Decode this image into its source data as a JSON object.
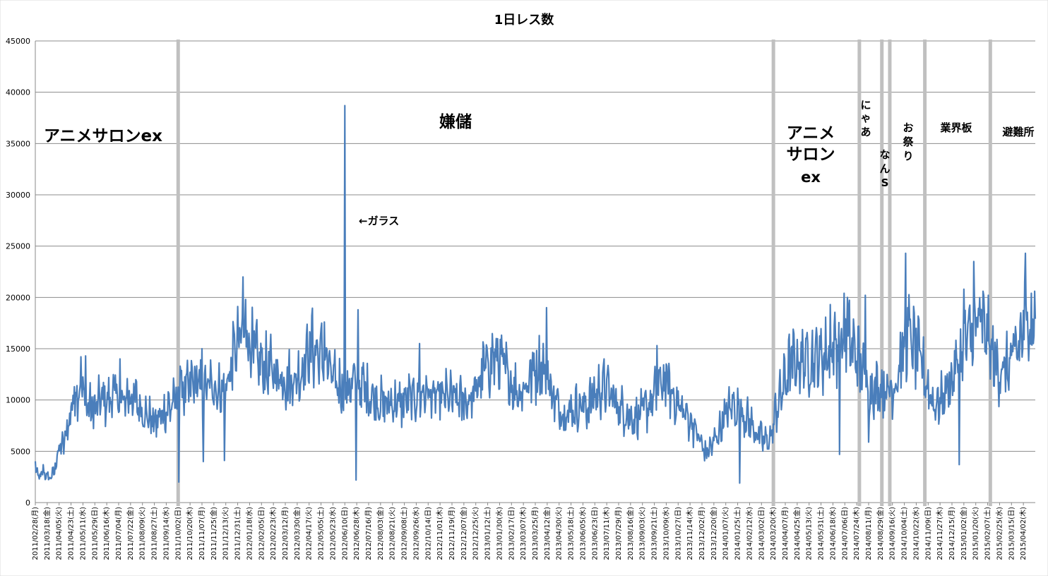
{
  "chart_data": {
    "type": "line",
    "title": "1日レス数",
    "xlabel": "",
    "ylabel": "",
    "ylim": [
      0,
      45000
    ],
    "yticks": [
      0,
      5000,
      10000,
      15000,
      20000,
      25000,
      30000,
      35000,
      40000,
      45000
    ],
    "grid": true,
    "legend": "none",
    "x_start": "2011-02-28",
    "x_end": "2015-04-20",
    "x_tick_labels": [
      "2011/02/28(月)",
      "2011/03/18(金)",
      "2011/04/05(火)",
      "2011/04/23(土)",
      "2011/05/11(水)",
      "2011/05/29(日)",
      "2011/06/16(木)",
      "2011/07/04(月)",
      "2011/07/22(金)",
      "2011/08/09(火)",
      "2011/08/27(土)",
      "2011/09/14(水)",
      "2011/10/02(日)",
      "2011/10/20(木)",
      "2011/11/07(月)",
      "2011/11/25(金)",
      "2011/12/13(火)",
      "2011/12/31(土)",
      "2012/01/18(水)",
      "2012/02/05(日)",
      "2012/02/23(木)",
      "2012/03/12(月)",
      "2012/03/30(金)",
      "2012/04/17(火)",
      "2012/05/05(土)",
      "2012/05/23(水)",
      "2012/06/10(日)",
      "2012/06/28(木)",
      "2012/07/16(月)",
      "2012/08/03(金)",
      "2012/08/21(火)",
      "2012/09/08(土)",
      "2012/09/26(水)",
      "2012/10/14(日)",
      "2012/11/01(木)",
      "2012/11/19(月)",
      "2012/12/07(金)",
      "2012/12/25(火)",
      "2013/01/12(土)",
      "2013/01/30(水)",
      "2013/02/17(日)",
      "2013/03/07(木)",
      "2013/03/25(月)",
      "2013/04/12(金)",
      "2013/04/30(火)",
      "2013/05/18(土)",
      "2013/06/05(水)",
      "2013/06/23(日)",
      "2013/07/11(木)",
      "2013/07/29(月)",
      "2013/08/16(金)",
      "2013/09/03(火)",
      "2013/09/21(土)",
      "2013/10/09(水)",
      "2013/10/27(日)",
      "2013/11/14(木)",
      "2013/12/02(月)",
      "2013/12/20(金)",
      "2014/01/07(火)",
      "2014/01/25(土)",
      "2014/02/12(水)",
      "2014/03/02(日)",
      "2014/03/20(木)",
      "2014/04/07(月)",
      "2014/04/25(金)",
      "2014/05/13(火)",
      "2014/05/31(土)",
      "2014/06/18(水)",
      "2014/07/06(日)",
      "2014/07/24(木)",
      "2014/08/11(月)",
      "2014/08/29(金)",
      "2014/09/16(火)",
      "2014/10/04(土)",
      "2014/10/22(水)",
      "2014/11/09(日)",
      "2014/11/27(木)",
      "2014/12/15(月)",
      "2015/01/02(金)",
      "2015/01/20(火)",
      "2015/02/07(土)",
      "2015/02/25(水)",
      "2015/03/15(日)",
      "2015/04/02(木)"
    ],
    "series": [
      {
        "color": "#4a7ebb",
        "anchors": [
          [
            "2011-02-28",
            3800
          ],
          [
            "2011-03-05",
            2200
          ],
          [
            "2011-03-12",
            3000
          ],
          [
            "2011-03-20",
            2300
          ],
          [
            "2011-03-28",
            2800
          ],
          [
            "2011-04-04",
            5000
          ],
          [
            "2011-04-12",
            5600
          ],
          [
            "2011-04-20",
            7800
          ],
          [
            "2011-04-28",
            10200
          ],
          [
            "2011-05-08",
            11500
          ],
          [
            "2011-05-18",
            9200
          ],
          [
            "2011-05-28",
            8800
          ],
          [
            "2011-06-08",
            9900
          ],
          [
            "2011-06-18",
            9600
          ],
          [
            "2011-06-28",
            10600
          ],
          [
            "2011-07-08",
            9100
          ],
          [
            "2011-07-18",
            10300
          ],
          [
            "2011-07-28",
            9800
          ],
          [
            "2011-08-08",
            8900
          ],
          [
            "2011-08-18",
            8200
          ],
          [
            "2011-08-28",
            7600
          ],
          [
            "2011-09-08",
            8400
          ],
          [
            "2011-09-18",
            9100
          ],
          [
            "2011-09-28",
            9600
          ],
          [
            "2011-10-05",
            11000
          ],
          [
            "2011-10-15",
            10500
          ],
          [
            "2011-10-25",
            11600
          ],
          [
            "2011-11-04",
            11000
          ],
          [
            "2011-11-14",
            10800
          ],
          [
            "2011-11-24",
            11400
          ],
          [
            "2011-12-04",
            10600
          ],
          [
            "2011-12-14",
            11200
          ],
          [
            "2011-12-24",
            13500
          ],
          [
            "2012-01-03",
            15500
          ],
          [
            "2012-01-13",
            16500
          ],
          [
            "2012-01-23",
            14400
          ],
          [
            "2012-02-02",
            13200
          ],
          [
            "2012-02-12",
            12800
          ],
          [
            "2012-02-22",
            12500
          ],
          [
            "2012-03-04",
            12100
          ],
          [
            "2012-03-14",
            11700
          ],
          [
            "2012-03-24",
            11600
          ],
          [
            "2012-04-03",
            12200
          ],
          [
            "2012-04-13",
            14000
          ],
          [
            "2012-04-23",
            14700
          ],
          [
            "2012-05-03",
            14000
          ],
          [
            "2012-05-13",
            13600
          ],
          [
            "2012-05-23",
            11600
          ],
          [
            "2012-06-03",
            11200
          ],
          [
            "2012-06-13",
            10900
          ],
          [
            "2012-06-23",
            11300
          ],
          [
            "2012-07-03",
            11500
          ],
          [
            "2012-07-13",
            10600
          ],
          [
            "2012-07-23",
            10000
          ],
          [
            "2012-08-02",
            9600
          ],
          [
            "2012-08-12",
            9300
          ],
          [
            "2012-08-22",
            9600
          ],
          [
            "2012-09-01",
            9400
          ],
          [
            "2012-09-11",
            9800
          ],
          [
            "2012-09-21",
            9900
          ],
          [
            "2012-10-01",
            10200
          ],
          [
            "2012-10-11",
            10600
          ],
          [
            "2012-10-21",
            10000
          ],
          [
            "2012-11-01",
            9900
          ],
          [
            "2012-11-11",
            10100
          ],
          [
            "2012-11-21",
            9900
          ],
          [
            "2012-12-01",
            9700
          ],
          [
            "2012-12-11",
            9700
          ],
          [
            "2012-12-21",
            10000
          ],
          [
            "2013-01-01",
            11800
          ],
          [
            "2013-01-11",
            13200
          ],
          [
            "2013-01-21",
            13800
          ],
          [
            "2013-01-31",
            13500
          ],
          [
            "2013-02-10",
            12200
          ],
          [
            "2013-02-20",
            11000
          ],
          [
            "2013-03-02",
            10600
          ],
          [
            "2013-03-12",
            11300
          ],
          [
            "2013-03-22",
            12700
          ],
          [
            "2013-04-01",
            12900
          ],
          [
            "2013-04-11",
            12400
          ],
          [
            "2013-04-21",
            10200
          ],
          [
            "2013-05-01",
            8700
          ],
          [
            "2013-05-11",
            8700
          ],
          [
            "2013-05-21",
            8900
          ],
          [
            "2013-05-31",
            9200
          ],
          [
            "2013-06-10",
            9100
          ],
          [
            "2013-06-20",
            9900
          ],
          [
            "2013-06-30",
            10800
          ],
          [
            "2013-07-10",
            11000
          ],
          [
            "2013-07-20",
            10000
          ],
          [
            "2013-07-30",
            9100
          ],
          [
            "2013-08-09",
            8600
          ],
          [
            "2013-08-19",
            8000
          ],
          [
            "2013-08-29",
            8300
          ],
          [
            "2013-09-08",
            8900
          ],
          [
            "2013-09-18",
            9800
          ],
          [
            "2013-09-28",
            11100
          ],
          [
            "2013-10-08",
            11600
          ],
          [
            "2013-10-18",
            10300
          ],
          [
            "2013-10-28",
            9200
          ],
          [
            "2013-11-07",
            8400
          ],
          [
            "2013-11-17",
            7600
          ],
          [
            "2013-11-27",
            6200
          ],
          [
            "2013-12-07",
            4700
          ],
          [
            "2013-12-17",
            5400
          ],
          [
            "2013-12-27",
            6700
          ],
          [
            "2014-01-06",
            8200
          ],
          [
            "2014-01-16",
            9300
          ],
          [
            "2014-01-26",
            8900
          ],
          [
            "2014-02-05",
            8300
          ],
          [
            "2014-02-15",
            7400
          ],
          [
            "2014-02-25",
            6400
          ],
          [
            "2014-03-07",
            5800
          ],
          [
            "2014-03-17",
            6300
          ],
          [
            "2014-03-24",
            8800
          ],
          [
            "2014-04-04",
            11000
          ],
          [
            "2014-04-14",
            13000
          ],
          [
            "2014-04-24",
            13500
          ],
          [
            "2014-05-04",
            13600
          ],
          [
            "2014-05-14",
            13700
          ],
          [
            "2014-05-24",
            13800
          ],
          [
            "2014-06-03",
            14000
          ],
          [
            "2014-06-13",
            14300
          ],
          [
            "2014-06-23",
            15200
          ],
          [
            "2014-07-03",
            15500
          ],
          [
            "2014-07-13",
            15300
          ],
          [
            "2014-07-23",
            14200
          ],
          [
            "2014-08-02",
            12300
          ],
          [
            "2014-08-12",
            11200
          ],
          [
            "2014-08-22",
            10800
          ],
          [
            "2014-09-01",
            11000
          ],
          [
            "2014-09-11",
            10600
          ],
          [
            "2014-09-21",
            11500
          ],
          [
            "2014-10-01",
            14000
          ],
          [
            "2014-10-11",
            15800
          ],
          [
            "2014-10-21",
            14500
          ],
          [
            "2014-10-31",
            13000
          ],
          [
            "2014-11-07",
            11300
          ],
          [
            "2014-11-17",
            9400
          ],
          [
            "2014-11-27",
            9600
          ],
          [
            "2014-12-07",
            10800
          ],
          [
            "2014-12-17",
            12100
          ],
          [
            "2014-12-27",
            13900
          ],
          [
            "2015-01-06",
            15200
          ],
          [
            "2015-01-16",
            16500
          ],
          [
            "2015-01-26",
            17300
          ],
          [
            "2015-02-05",
            16200
          ],
          [
            "2015-02-15",
            13700
          ],
          [
            "2015-02-25",
            12600
          ],
          [
            "2015-03-07",
            12700
          ],
          [
            "2015-03-17",
            13700
          ],
          [
            "2015-03-27",
            15200
          ],
          [
            "2015-04-06",
            17300
          ],
          [
            "2015-04-15",
            16700
          ],
          [
            "2015-04-20",
            16400
          ]
        ],
        "spikes": [
          [
            "2011-04-28",
            11300
          ],
          [
            "2011-05-15",
            14300
          ],
          [
            "2011-07-06",
            14000
          ],
          [
            "2011-10-03",
            2000
          ],
          [
            "2011-10-05",
            13300
          ],
          [
            "2011-11-07",
            15000
          ],
          [
            "2011-11-09",
            4000
          ],
          [
            "2011-12-11",
            4100
          ],
          [
            "2011-12-26",
            16400
          ],
          [
            "2012-01-08",
            22000
          ],
          [
            "2012-01-12",
            19800
          ],
          [
            "2012-04-21",
            18200
          ],
          [
            "2012-05-10",
            17600
          ],
          [
            "2012-06-10",
            38700
          ],
          [
            "2012-06-27",
            2200
          ],
          [
            "2012-06-30",
            18800
          ],
          [
            "2012-10-01",
            15500
          ],
          [
            "2013-04-11",
            19000
          ],
          [
            "2013-09-25",
            15300
          ],
          [
            "2014-01-28",
            1900
          ],
          [
            "2014-06-14",
            19300
          ],
          [
            "2014-06-28",
            4700
          ],
          [
            "2014-07-05",
            20400
          ],
          [
            "2014-07-10",
            20000
          ],
          [
            "2014-08-06",
            20200
          ],
          [
            "2014-08-11",
            5900
          ],
          [
            "2014-10-06",
            24300
          ],
          [
            "2014-10-09",
            19000
          ],
          [
            "2014-12-26",
            3700
          ],
          [
            "2015-01-02",
            20800
          ],
          [
            "2015-01-17",
            23500
          ],
          [
            "2015-04-05",
            24300
          ],
          [
            "2015-04-14",
            20400
          ],
          [
            "2015-04-19",
            20600
          ]
        ]
      }
    ],
    "separators": [
      "2011-10-02",
      "2014-03-20",
      "2014-07-28",
      "2014-08-31",
      "2014-09-12",
      "2014-11-04",
      "2015-02-11"
    ],
    "annotations": {
      "anime_salon_1": "アニメサロンex",
      "kenchou": "嫌儲",
      "glass_arrow": "←ガラス",
      "anime_salon_2_line1": "アニメ",
      "anime_salon_2_line2": "サロン",
      "anime_salon_2_line3": "ex",
      "nyaa_1": "に",
      "nyaa_2": "ゃ",
      "nyaa_3": "あ",
      "nans_1": "な",
      "nans_2": "ん",
      "nans_3": "S",
      "omatsuri_1": "お",
      "omatsuri_2": "祭",
      "omatsuri_3": "り",
      "gyoukai": "業界板",
      "hinanjo": "避難所"
    }
  }
}
